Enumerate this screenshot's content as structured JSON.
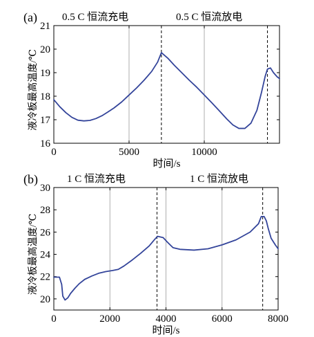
{
  "chart_data": [
    {
      "panel_label": "(a)",
      "type": "line",
      "xlabel": "时间/s",
      "ylabel": "液冷板最高温度/℃",
      "xlim": [
        0,
        15000
      ],
      "ylim": [
        16,
        21
      ],
      "xticks": [
        0,
        5000,
        10000
      ],
      "yticks": [
        16,
        17,
        18,
        19,
        20,
        21
      ],
      "grid": "vertical",
      "region_labels": [
        "0.5 C 恒流充电",
        "0.5 C 恒流放电"
      ],
      "dashed_lines_x": [
        7150,
        14200
      ],
      "series": [
        {
          "color": "#33449a",
          "points": [
            [
              0,
              17.85
            ],
            [
              400,
              17.55
            ],
            [
              800,
              17.3
            ],
            [
              1200,
              17.1
            ],
            [
              1600,
              16.98
            ],
            [
              2000,
              16.95
            ],
            [
              2400,
              16.97
            ],
            [
              2800,
              17.05
            ],
            [
              3200,
              17.17
            ],
            [
              3600,
              17.33
            ],
            [
              4000,
              17.5
            ],
            [
              4500,
              17.75
            ],
            [
              5000,
              18.05
            ],
            [
              5500,
              18.35
            ],
            [
              6000,
              18.68
            ],
            [
              6500,
              19.05
            ],
            [
              6900,
              19.45
            ],
            [
              7150,
              19.85
            ],
            [
              7600,
              19.6
            ],
            [
              8000,
              19.32
            ],
            [
              8500,
              19.0
            ],
            [
              9000,
              18.68
            ],
            [
              9500,
              18.38
            ],
            [
              10000,
              18.05
            ],
            [
              10500,
              17.72
            ],
            [
              11000,
              17.38
            ],
            [
              11500,
              17.03
            ],
            [
              11900,
              16.78
            ],
            [
              12300,
              16.63
            ],
            [
              12700,
              16.63
            ],
            [
              13100,
              16.85
            ],
            [
              13500,
              17.4
            ],
            [
              13800,
              18.15
            ],
            [
              14050,
              18.85
            ],
            [
              14200,
              19.15
            ],
            [
              14400,
              19.2
            ],
            [
              14600,
              19.0
            ],
            [
              14850,
              18.82
            ],
            [
              15000,
              18.75
            ]
          ]
        }
      ]
    },
    {
      "panel_label": "(b)",
      "type": "line",
      "xlabel": "时间/s",
      "ylabel": "液冷板最高温度/℃",
      "xlim": [
        0,
        8000
      ],
      "ylim": [
        19,
        30
      ],
      "xticks": [
        0,
        2000,
        4000,
        6000,
        8000
      ],
      "yticks": [
        20,
        22,
        24,
        26,
        28,
        30
      ],
      "grid": "vertical",
      "region_labels": [
        "1 C 恒流充电",
        "1 C 恒流放电"
      ],
      "dashed_lines_x": [
        3680,
        7450
      ],
      "series": [
        {
          "color": "#33449a",
          "points": [
            [
              0,
              21.95
            ],
            [
              200,
              21.95
            ],
            [
              280,
              21.3
            ],
            [
              320,
              20.25
            ],
            [
              400,
              19.9
            ],
            [
              500,
              20.1
            ],
            [
              600,
              20.5
            ],
            [
              750,
              20.95
            ],
            [
              900,
              21.35
            ],
            [
              1100,
              21.75
            ],
            [
              1350,
              22.05
            ],
            [
              1600,
              22.3
            ],
            [
              1850,
              22.45
            ],
            [
              2100,
              22.55
            ],
            [
              2300,
              22.65
            ],
            [
              2500,
              22.95
            ],
            [
              2800,
              23.5
            ],
            [
              3100,
              24.1
            ],
            [
              3400,
              24.75
            ],
            [
              3600,
              25.35
            ],
            [
              3700,
              25.62
            ],
            [
              3900,
              25.5
            ],
            [
              4050,
              25.1
            ],
            [
              4250,
              24.6
            ],
            [
              4500,
              24.45
            ],
            [
              5000,
              24.38
            ],
            [
              5500,
              24.5
            ],
            [
              6000,
              24.85
            ],
            [
              6500,
              25.3
            ],
            [
              7000,
              26.0
            ],
            [
              7300,
              26.75
            ],
            [
              7400,
              27.4
            ],
            [
              7500,
              27.4
            ],
            [
              7580,
              27.0
            ],
            [
              7650,
              26.3
            ],
            [
              7750,
              25.45
            ],
            [
              7900,
              24.85
            ],
            [
              8000,
              24.5
            ]
          ]
        }
      ]
    }
  ]
}
